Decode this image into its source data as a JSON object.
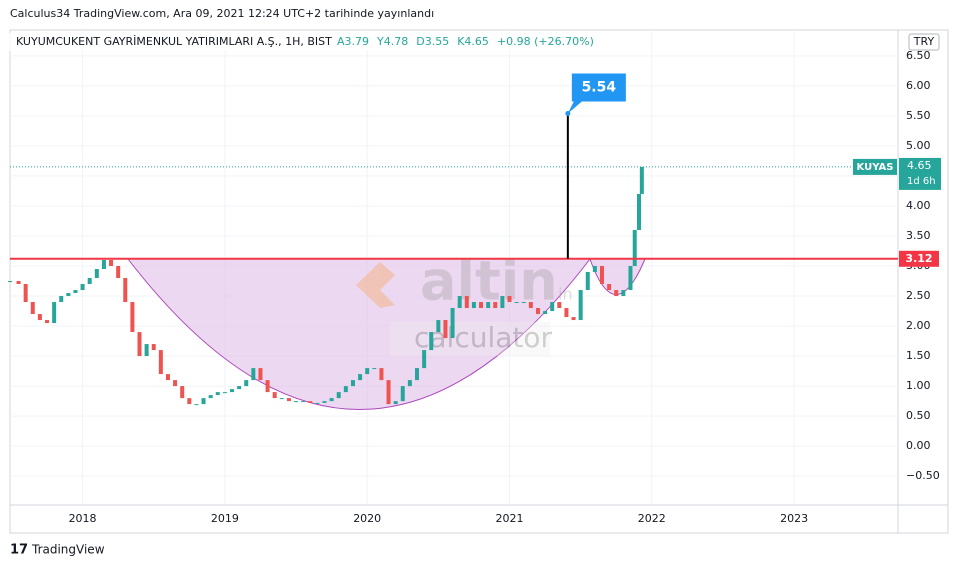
{
  "header": {
    "publisher": "Calculus34 TradingView.com, Ara 09, 2021 12:24 UTC+2 tarihinde yayınlandı",
    "symbol": "KUYUMCUKENT GAYRİMENKUL YATIRIMLARI A.Ş., 1H, BIST",
    "ohlc": [
      "A3.79",
      "Y4.78",
      "D3.55",
      "K4.65",
      "+0.98 (+26.70%)"
    ],
    "currency": "TRY"
  },
  "watermark": {
    "brand": "altin",
    "suffix": "in",
    "sub": "calculator"
  },
  "footer": "TradingView",
  "chart_data": {
    "type": "candlestick",
    "ticker": "KUYAS",
    "countdown": "1d 6h",
    "up_color": "#26a69a",
    "down_color": "#ef5350",
    "x": [
      2017.49,
      2017.55,
      2017.6,
      2017.65,
      2017.7,
      2017.75,
      2017.8,
      2017.85,
      2017.9,
      2017.95,
      2018.0,
      2018.05,
      2018.1,
      2018.15,
      2018.2,
      2018.25,
      2018.3,
      2018.35,
      2018.4,
      2018.45,
      2018.5,
      2018.55,
      2018.6,
      2018.65,
      2018.7,
      2018.75,
      2018.8,
      2018.85,
      2018.9,
      2018.95,
      2019.0,
      2019.05,
      2019.1,
      2019.15,
      2019.2,
      2019.25,
      2019.3,
      2019.35,
      2019.4,
      2019.45,
      2019.5,
      2019.55,
      2019.6,
      2019.65,
      2019.7,
      2019.75,
      2019.8,
      2019.85,
      2019.9,
      2019.95,
      2020.0,
      2020.05,
      2020.1,
      2020.15,
      2020.2,
      2020.25,
      2020.3,
      2020.35,
      2020.4,
      2020.45,
      2020.5,
      2020.55,
      2020.6,
      2020.65,
      2020.7,
      2020.75,
      2020.8,
      2020.85,
      2020.9,
      2020.95,
      2021.0,
      2021.05,
      2021.1,
      2021.15,
      2021.2,
      2021.25,
      2021.3,
      2021.35,
      2021.4,
      2021.45,
      2021.5,
      2021.55,
      2021.6,
      2021.65,
      2021.7,
      2021.75,
      2021.8,
      2021.85,
      2021.88,
      2021.91,
      2021.93
    ],
    "values": [
      2.75,
      2.7,
      2.4,
      2.2,
      2.1,
      2.05,
      2.4,
      2.5,
      2.55,
      2.6,
      2.7,
      2.8,
      2.95,
      3.1,
      3.0,
      2.8,
      2.4,
      1.9,
      1.5,
      1.7,
      1.6,
      1.2,
      1.1,
      1.0,
      0.8,
      0.7,
      0.7,
      0.8,
      0.85,
      0.9,
      0.9,
      0.95,
      1.0,
      1.1,
      1.3,
      1.1,
      0.9,
      0.8,
      0.8,
      0.75,
      0.75,
      0.75,
      0.72,
      0.72,
      0.75,
      0.8,
      0.9,
      1.0,
      1.1,
      1.2,
      1.3,
      1.3,
      1.1,
      0.7,
      0.75,
      1.0,
      1.1,
      1.3,
      1.6,
      1.9,
      2.1,
      1.8,
      2.3,
      2.5,
      2.3,
      2.4,
      2.3,
      2.4,
      2.3,
      2.5,
      2.4,
      2.4,
      2.4,
      2.3,
      2.2,
      2.25,
      2.4,
      2.3,
      2.15,
      2.1,
      2.6,
      2.9,
      3.0,
      2.7,
      2.6,
      2.5,
      2.6,
      3.0,
      3.6,
      4.2,
      4.65
    ],
    "hline": {
      "value": 3.12,
      "label": "3.12",
      "color": "#f23645"
    },
    "marker": {
      "x": 2021.41,
      "value": 5.54
    },
    "xlim": [
      2017.49,
      2023.73
    ],
    "xticks": [
      2018,
      2019,
      2020,
      2021,
      2022,
      2023
    ],
    "ylim": [
      -0.98,
      6.93
    ],
    "yticks": [
      {
        "value": -0.5,
        "label": "−0.50"
      },
      {
        "value": 0,
        "label": "0.00"
      },
      {
        "value": 0.5,
        "label": "0.50"
      },
      {
        "value": 1,
        "label": "1.00"
      },
      {
        "value": 1.5,
        "label": "1.50"
      },
      {
        "value": 2,
        "label": "2.00"
      },
      {
        "value": 2.5,
        "label": "2.50"
      },
      {
        "value": 3,
        "label": "3.00"
      },
      {
        "value": 3.5,
        "label": "3.50"
      },
      {
        "value": 4,
        "label": "4.00"
      },
      {
        "value": 4.5,
        "label": "4.50"
      },
      {
        "value": 5,
        "label": "5.00"
      },
      {
        "value": 5.5,
        "label": "5.50"
      },
      {
        "value": 6,
        "label": "6.00"
      },
      {
        "value": 6.5,
        "label": "6.50"
      }
    ],
    "grid": true
  }
}
